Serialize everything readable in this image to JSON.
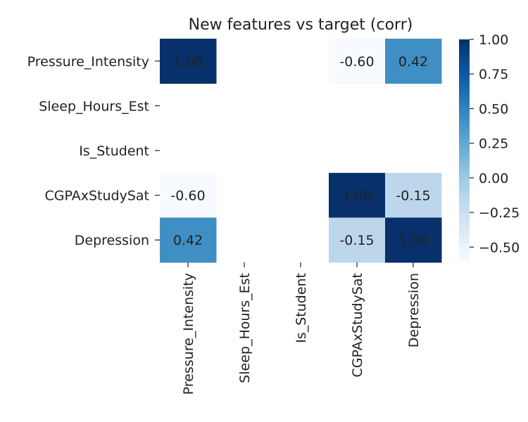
{
  "chart_data": {
    "type": "heatmap",
    "title": "New features vs target (corr)",
    "row_labels": [
      "Pressure_Intensity",
      "Sleep_Hours_Est",
      "Is_Student",
      "CGPAxStudySat",
      "Depression"
    ],
    "col_labels": [
      "Pressure_Intensity",
      "Sleep_Hours_Est",
      "Is_Student",
      "CGPAxStudySat",
      "Depression"
    ],
    "values": [
      [
        1.0,
        null,
        null,
        -0.6,
        0.42
      ],
      [
        null,
        null,
        null,
        null,
        null
      ],
      [
        null,
        null,
        null,
        null,
        null
      ],
      [
        -0.6,
        null,
        null,
        1.0,
        -0.15
      ],
      [
        0.42,
        null,
        null,
        -0.15,
        1.0
      ]
    ],
    "value_labels": [
      [
        "1.00",
        "",
        "",
        "-0.60",
        "0.42"
      ],
      [
        "",
        "",
        "",
        "",
        ""
      ],
      [
        "",
        "",
        "",
        "",
        ""
      ],
      [
        "-0.60",
        "",
        "",
        "1.00",
        "-0.15"
      ],
      [
        "0.42",
        "",
        "",
        "-0.15",
        "1.00"
      ]
    ],
    "colormap": "Blues",
    "vmin": -0.6,
    "vmax": 1.0,
    "colorbar_ticks": [
      1.0,
      0.75,
      0.5,
      0.25,
      0.0,
      -0.25,
      -0.5
    ],
    "colorbar_tick_labels": [
      "1.00",
      "0.75",
      "0.50",
      "0.25",
      "0.00",
      "−0.25",
      "−0.50"
    ],
    "colors": {
      "cell_low": "#f7fbff",
      "cell_high": "#08306b",
      "text_dark": "#222222",
      "text_light": "#ffffff"
    }
  }
}
